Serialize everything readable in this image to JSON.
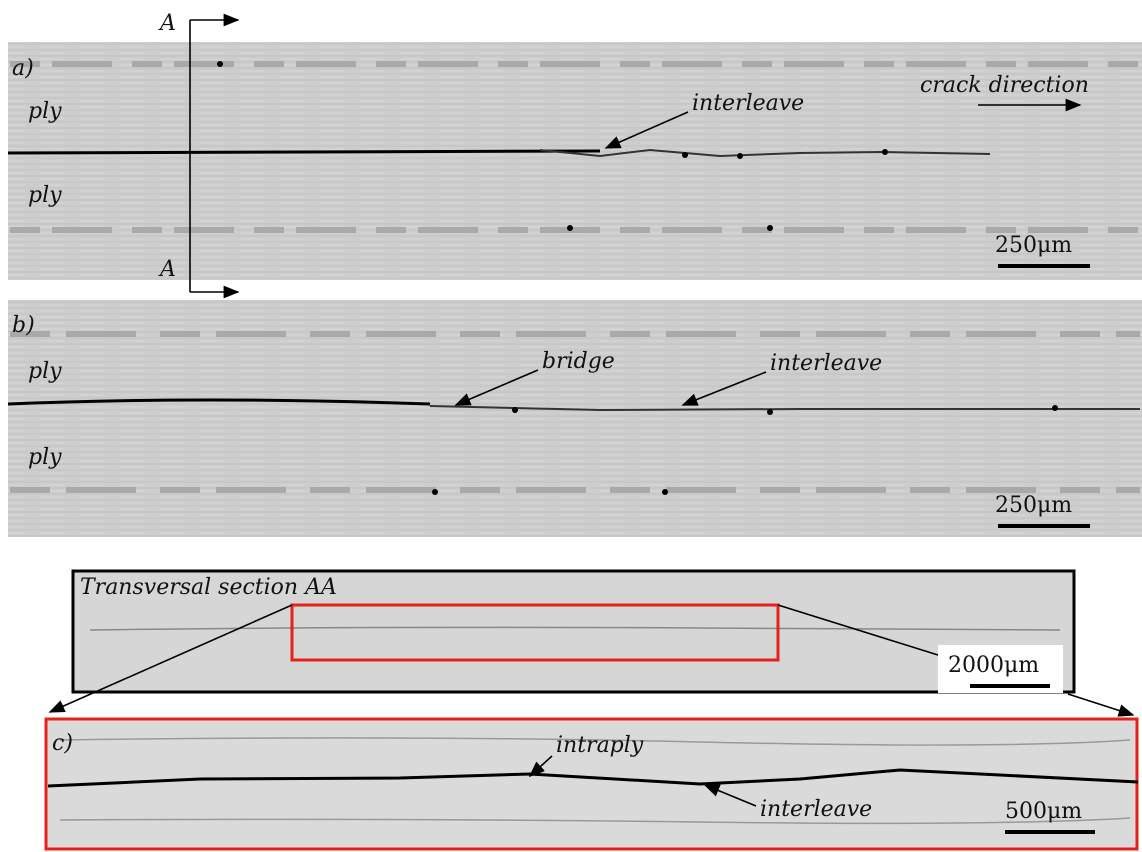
{
  "panel_a": {
    "label": "a)",
    "section_top": "A",
    "section_bottom": "A",
    "ply_top": "ply",
    "ply_bottom": "ply",
    "interleave": "interleave",
    "crack_direction": "crack direction",
    "scale_bar": "250μm"
  },
  "panel_b": {
    "label": "b)",
    "ply_top": "ply",
    "ply_bottom": "ply",
    "bridge": "bridge",
    "interleave": "interleave",
    "scale_bar": "250μm"
  },
  "section": {
    "title": "Transversal section AA",
    "scale_bar": "2000μm"
  },
  "panel_c": {
    "label": "c)",
    "intraply": "intraply",
    "interleave": "interleave",
    "scale_bar": "500μm"
  }
}
